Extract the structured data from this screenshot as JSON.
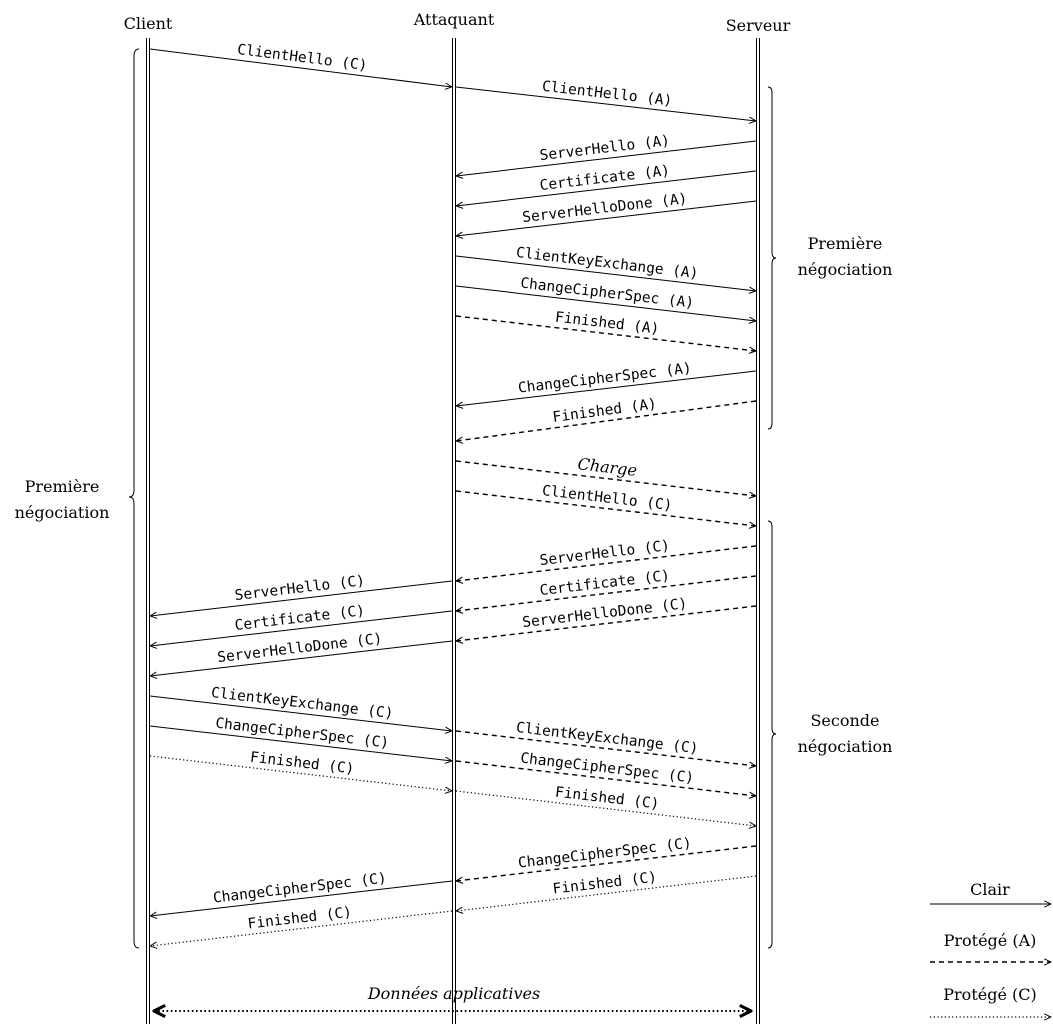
{
  "participants": [
    "Client",
    "Attaquant",
    "Serveur"
  ],
  "messages": [
    {
      "text": "ClientHello (C)",
      "from": "Client",
      "to": "Attaquant",
      "style": "clear"
    },
    {
      "text": "ClientHello (A)",
      "from": "Attaquant",
      "to": "Serveur",
      "style": "clear"
    },
    {
      "text": "ServerHello (A)",
      "from": "Serveur",
      "to": "Attaquant",
      "style": "clear"
    },
    {
      "text": "Certificate (A)",
      "from": "Serveur",
      "to": "Attaquant",
      "style": "clear"
    },
    {
      "text": "ServerHelloDone (A)",
      "from": "Serveur",
      "to": "Attaquant",
      "style": "clear"
    },
    {
      "text": "ClientKeyExchange (A)",
      "from": "Attaquant",
      "to": "Serveur",
      "style": "clear"
    },
    {
      "text": "ChangeCipherSpec (A)",
      "from": "Attaquant",
      "to": "Serveur",
      "style": "clear"
    },
    {
      "text": "Finished (A)",
      "from": "Attaquant",
      "to": "Serveur",
      "style": "protected-a"
    },
    {
      "text": "ChangeCipherSpec (A)",
      "from": "Serveur",
      "to": "Attaquant",
      "style": "clear"
    },
    {
      "text": "Finished (A)",
      "from": "Serveur",
      "to": "Attaquant",
      "style": "protected-a"
    },
    {
      "text": "Charge",
      "from": "Attaquant",
      "to": "Serveur",
      "style": "protected-a",
      "italic": true
    },
    {
      "text": "ClientHello (C)",
      "from": "Attaquant",
      "to": "Serveur",
      "style": "protected-a"
    },
    {
      "text": "ServerHello (C)",
      "from": "Serveur",
      "to": "Attaquant",
      "style": "protected-a"
    },
    {
      "text": "Certificate (C)",
      "from": "Serveur",
      "to": "Attaquant",
      "style": "protected-a"
    },
    {
      "text": "ServerHelloDone (C)",
      "from": "Serveur",
      "to": "Attaquant",
      "style": "protected-a"
    },
    {
      "text": "ServerHello (C)",
      "from": "Attaquant",
      "to": "Client",
      "style": "clear"
    },
    {
      "text": "Certificate (C)",
      "from": "Attaquant",
      "to": "Client",
      "style": "clear"
    },
    {
      "text": "ServerHelloDone (C)",
      "from": "Attaquant",
      "to": "Client",
      "style": "clear"
    },
    {
      "text": "ClientKeyExchange (C)",
      "from": "Client",
      "to": "Attaquant",
      "style": "clear"
    },
    {
      "text": "ChangeCipherSpec (C)",
      "from": "Client",
      "to": "Attaquant",
      "style": "clear"
    },
    {
      "text": "Finished (C)",
      "from": "Client",
      "to": "Attaquant",
      "style": "protected-c"
    },
    {
      "text": "ClientKeyExchange (C)",
      "from": "Attaquant",
      "to": "Serveur",
      "style": "protected-a"
    },
    {
      "text": "ChangeCipherSpec (C)",
      "from": "Attaquant",
      "to": "Serveur",
      "style": "protected-a"
    },
    {
      "text": "Finished (C)",
      "from": "Attaquant",
      "to": "Serveur",
      "style": "protected-c"
    },
    {
      "text": "ChangeCipherSpec (C)",
      "from": "Serveur",
      "to": "Attaquant",
      "style": "protected-a"
    },
    {
      "text": "Finished (C)",
      "from": "Serveur",
      "to": "Attaquant",
      "style": "protected-c"
    },
    {
      "text": "ChangeCipherSpec (C)",
      "from": "Attaquant",
      "to": "Client",
      "style": "clear"
    },
    {
      "text": "Finished (C)",
      "from": "Attaquant",
      "to": "Client",
      "style": "protected-c"
    }
  ],
  "braces": [
    {
      "line1": "Première",
      "line2": "négociation",
      "side": "right",
      "lifeline": "Serveur"
    },
    {
      "line1": "Seconde",
      "line2": "négociation",
      "side": "right",
      "lifeline": "Serveur"
    },
    {
      "line1": "Première",
      "line2": "négociation",
      "side": "left",
      "lifeline": "Client"
    }
  ],
  "application_data": {
    "text": "Données applicatives",
    "from": "Client",
    "to": "Serveur",
    "style": "protected-c"
  },
  "legend": [
    {
      "label": "Clair",
      "style": "clear"
    },
    {
      "label": "Protégé (A)",
      "style": "protected-a"
    },
    {
      "label": "Protégé (C)",
      "style": "protected-c"
    }
  ]
}
